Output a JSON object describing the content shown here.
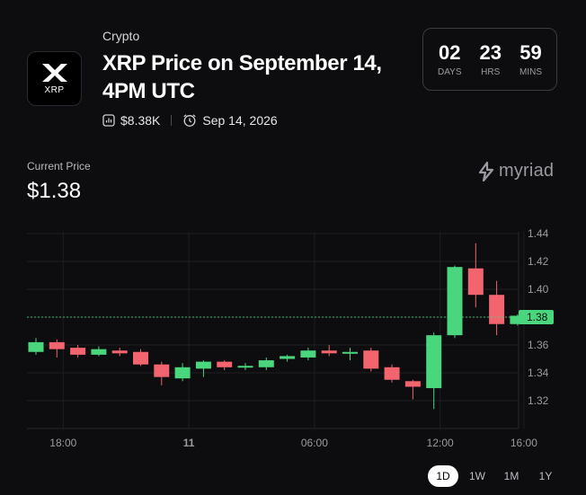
{
  "market": {
    "logo_text": "XRP",
    "category": "Crypto",
    "title": "XRP Price on September 14, 4PM UTC",
    "volume": "$8.38K",
    "end_date": "Sep 14, 2026"
  },
  "countdown": [
    {
      "value": "02",
      "label": "DAYS"
    },
    {
      "value": "23",
      "label": "HRS"
    },
    {
      "value": "59",
      "label": "MINS"
    }
  ],
  "price": {
    "label": "Current Price",
    "value": "$1.38"
  },
  "brand": "myriad",
  "colors": {
    "up": "#4ad67d",
    "down": "#f2646e",
    "price_badge": "#4ad67d"
  },
  "chart_data": {
    "type": "candlestick",
    "x_labels": [
      {
        "t": 1.3,
        "label": "18:00"
      },
      {
        "t": 7.3,
        "label": "11"
      },
      {
        "t": 13.3,
        "label": "06:00"
      },
      {
        "t": 19.3,
        "label": "12:00"
      },
      {
        "t": 23.3,
        "label": "16:00"
      }
    ],
    "y_ticks": [
      1.32,
      1.34,
      1.36,
      1.38,
      1.4,
      1.42,
      1.44
    ],
    "ylim": [
      1.31,
      1.45
    ],
    "current_price": 1.38,
    "current_price_label": "1.38",
    "candles": [
      {
        "o": 1.355,
        "c": 1.362,
        "h": 1.365,
        "l": 1.353
      },
      {
        "o": 1.362,
        "c": 1.357,
        "h": 1.364,
        "l": 1.351
      },
      {
        "o": 1.358,
        "c": 1.353,
        "h": 1.36,
        "l": 1.351
      },
      {
        "o": 1.353,
        "c": 1.357,
        "h": 1.359,
        "l": 1.352
      },
      {
        "o": 1.356,
        "c": 1.354,
        "h": 1.358,
        "l": 1.352
      },
      {
        "o": 1.355,
        "c": 1.346,
        "h": 1.357,
        "l": 1.345
      },
      {
        "o": 1.346,
        "c": 1.337,
        "h": 1.348,
        "l": 1.331
      },
      {
        "o": 1.336,
        "c": 1.344,
        "h": 1.347,
        "l": 1.334
      },
      {
        "o": 1.343,
        "c": 1.348,
        "h": 1.349,
        "l": 1.337
      },
      {
        "o": 1.348,
        "c": 1.344,
        "h": 1.349,
        "l": 1.342
      },
      {
        "o": 1.345,
        "c": 1.345,
        "h": 1.347,
        "l": 1.342
      },
      {
        "o": 1.344,
        "c": 1.349,
        "h": 1.351,
        "l": 1.342
      },
      {
        "o": 1.35,
        "c": 1.352,
        "h": 1.353,
        "l": 1.348
      },
      {
        "o": 1.351,
        "c": 1.356,
        "h": 1.358,
        "l": 1.349
      },
      {
        "o": 1.356,
        "c": 1.354,
        "h": 1.36,
        "l": 1.352
      },
      {
        "o": 1.354,
        "c": 1.355,
        "h": 1.358,
        "l": 1.349
      },
      {
        "o": 1.356,
        "c": 1.343,
        "h": 1.358,
        "l": 1.341
      },
      {
        "o": 1.344,
        "c": 1.335,
        "h": 1.346,
        "l": 1.333
      },
      {
        "o": 1.334,
        "c": 1.33,
        "h": 1.335,
        "l": 1.321
      },
      {
        "o": 1.329,
        "c": 1.367,
        "h": 1.369,
        "l": 1.314
      },
      {
        "o": 1.367,
        "c": 1.416,
        "h": 1.417,
        "l": 1.365
      },
      {
        "o": 1.415,
        "c": 1.396,
        "h": 1.433,
        "l": 1.387
      },
      {
        "o": 1.396,
        "c": 1.375,
        "h": 1.406,
        "l": 1.367
      },
      {
        "o": 1.375,
        "c": 1.381,
        "h": 1.382,
        "l": 1.374
      }
    ]
  },
  "range_tabs": [
    {
      "label": "1D",
      "active": true
    },
    {
      "label": "1W",
      "active": false
    },
    {
      "label": "1M",
      "active": false
    },
    {
      "label": "1Y",
      "active": false
    }
  ]
}
